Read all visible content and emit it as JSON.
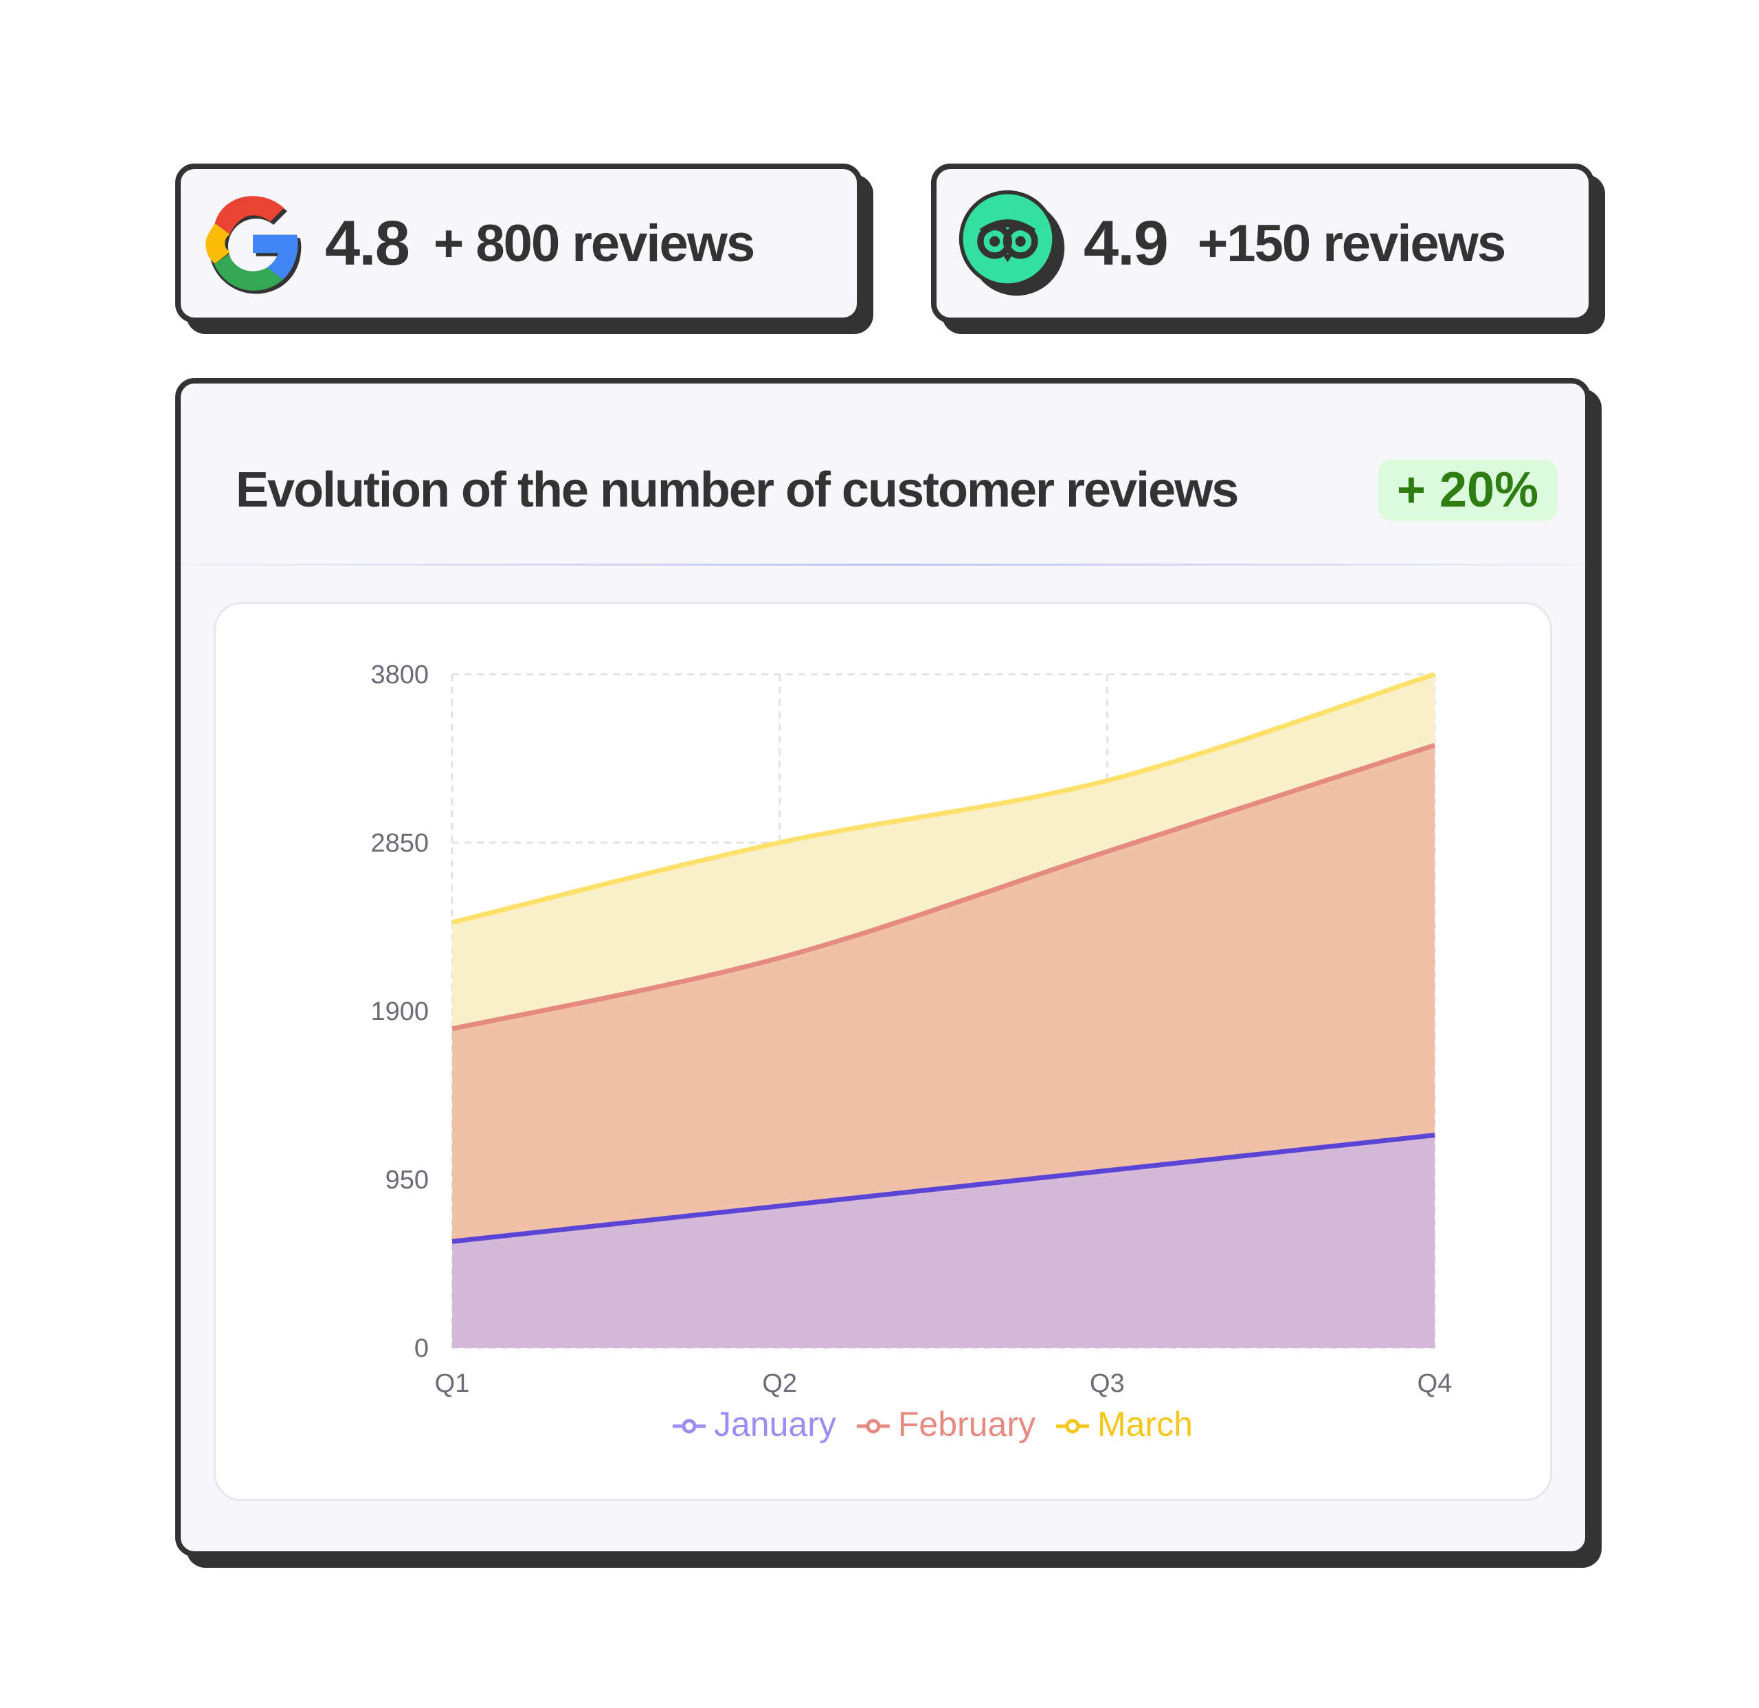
{
  "google": {
    "score": "4.8",
    "reviews": "+ 800 reviews",
    "icon": "google-logo"
  },
  "tripadvisor": {
    "score": "4.9",
    "reviews": "+150 reviews",
    "icon": "tripadvisor-logo",
    "color": "#34e0a1"
  },
  "main": {
    "title": "Evolution of the number of customer reviews",
    "badge": "+ 20%"
  },
  "chart_data": {
    "type": "area",
    "stacked": true,
    "categories": [
      "Q1",
      "Q2",
      "Q3",
      "Q4"
    ],
    "yticks": [
      "0",
      "950",
      "1900",
      "2850",
      "3800"
    ],
    "ylim": [
      0,
      3800
    ],
    "grid": true,
    "legend_placement": "bottom",
    "series": [
      {
        "name": "January",
        "values": [
          600,
          800,
          1000,
          1200
        ],
        "color": "#5b45d6",
        "fill": "#d6b8d8",
        "legend_color": "#9d8cf2"
      },
      {
        "name": "February",
        "values": [
          1200,
          1400,
          1800,
          2200
        ],
        "color": "#e58a80",
        "fill": "#f0c0a8",
        "legend_color": "#e58a80"
      },
      {
        "name": "March",
        "values": [
          600,
          650,
          400,
          400
        ],
        "color": "#fde16a",
        "fill": "#f9efc8",
        "legend_color": "#f5c518"
      }
    ]
  }
}
